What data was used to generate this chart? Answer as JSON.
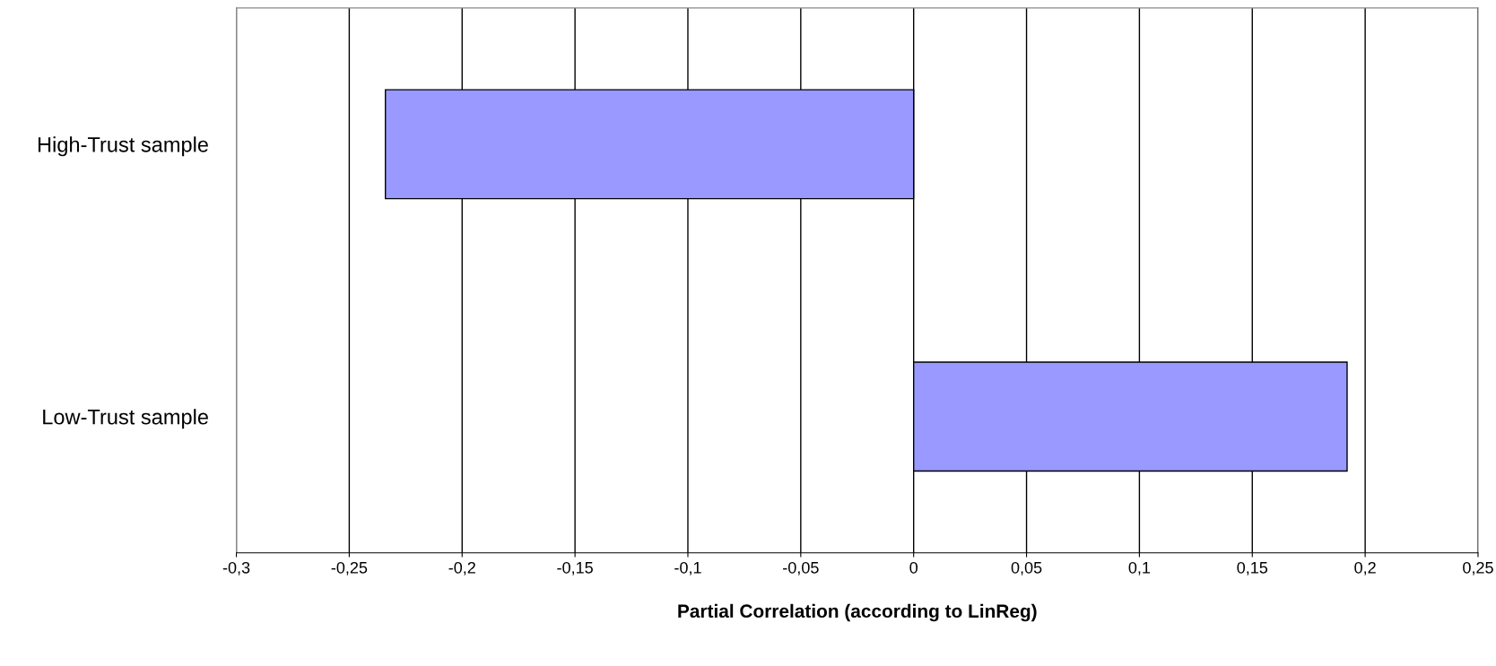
{
  "chart_data": {
    "type": "bar",
    "orientation": "horizontal",
    "xlabel": "Partial Correlation (according to LinReg)",
    "categories": [
      "High-Trust sample",
      "Low-Trust sample"
    ],
    "values": [
      -0.234,
      0.192
    ],
    "color": "#9999ff",
    "xlim": [
      -0.3,
      0.25
    ],
    "xticks": [
      {
        "value": -0.3,
        "label": "-0,3"
      },
      {
        "value": -0.25,
        "label": "-0,25"
      },
      {
        "value": -0.2,
        "label": "-0,2"
      },
      {
        "value": -0.15,
        "label": "-0,15"
      },
      {
        "value": -0.1,
        "label": "-0,1"
      },
      {
        "value": -0.05,
        "label": "-0,05"
      },
      {
        "value": 0,
        "label": "0"
      },
      {
        "value": 0.05,
        "label": "0,05"
      },
      {
        "value": 0.1,
        "label": "0,1"
      },
      {
        "value": 0.15,
        "label": "0,15"
      },
      {
        "value": 0.2,
        "label": "0,2"
      },
      {
        "value": 0.25,
        "label": "0,25"
      }
    ],
    "grid": "x"
  }
}
